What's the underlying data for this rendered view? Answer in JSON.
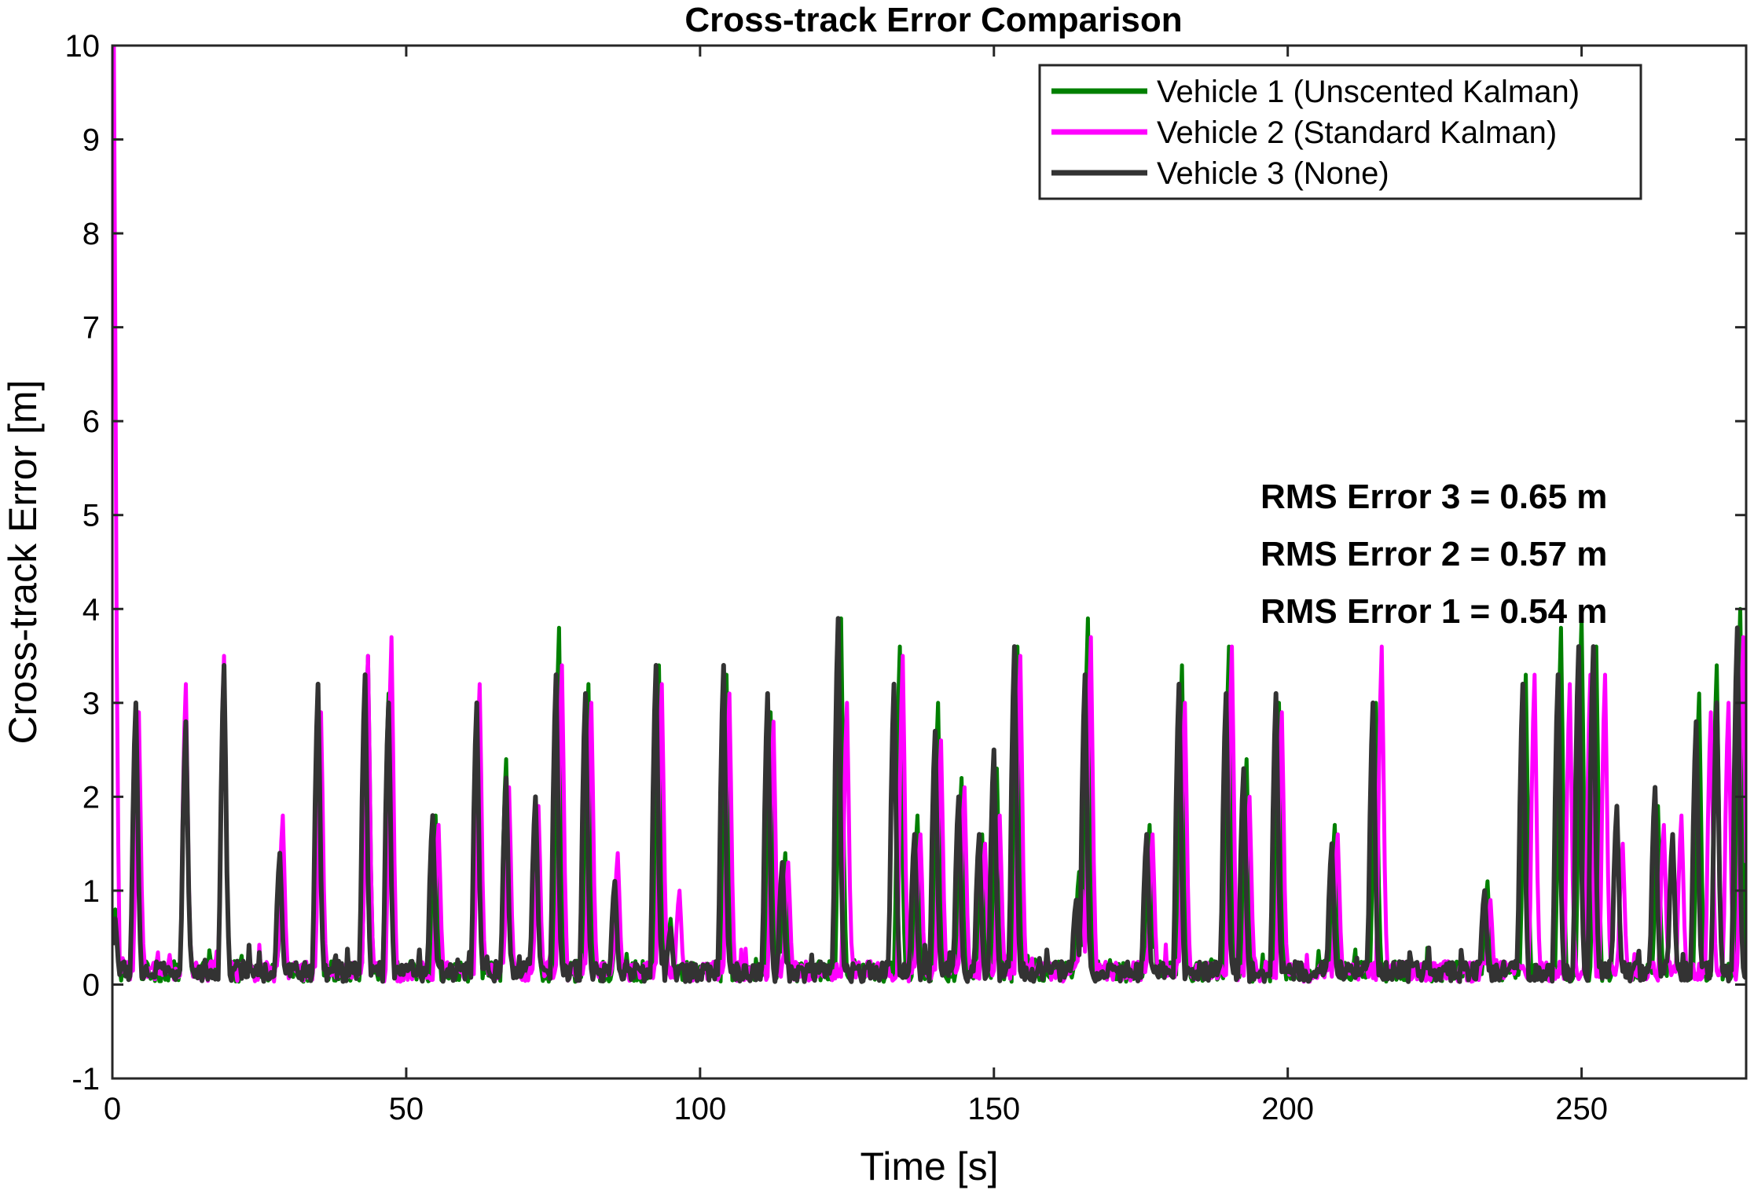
{
  "chart_data": {
    "type": "line",
    "title": "Cross-track Error Comparison",
    "xlabel": "Time [s]",
    "ylabel": "Cross-track Error [m]",
    "xlim": [
      0,
      278
    ],
    "ylim": [
      -1,
      10
    ],
    "xticks": [
      0,
      50,
      100,
      150,
      200,
      250
    ],
    "yticks": [
      -1,
      0,
      1,
      2,
      3,
      4,
      5,
      6,
      7,
      8,
      9,
      10
    ],
    "grid": false,
    "legend_position": "top-right",
    "series": [
      {
        "name": "Vehicle 1 (Unscented Kalman)",
        "color": "#008000",
        "peaks": [
          [
            0.4,
            0.8
          ],
          [
            4,
            3.0
          ],
          [
            12.5,
            2.8
          ],
          [
            19,
            3.4
          ],
          [
            29,
            1.5
          ],
          [
            35,
            3.2
          ],
          [
            43.5,
            3.5
          ],
          [
            47,
            3.1
          ],
          [
            55,
            1.8
          ],
          [
            62,
            3.0
          ],
          [
            67,
            2.4
          ],
          [
            72,
            2.0
          ],
          [
            76,
            3.8
          ],
          [
            81,
            3.2
          ],
          [
            86,
            1.1
          ],
          [
            93,
            3.4
          ],
          [
            95,
            0.7
          ],
          [
            104.5,
            3.3
          ],
          [
            112,
            2.9
          ],
          [
            114.5,
            1.4
          ],
          [
            124,
            3.9
          ],
          [
            134,
            3.6
          ],
          [
            137,
            1.8
          ],
          [
            140.5,
            3.0
          ],
          [
            144.5,
            2.2
          ],
          [
            148,
            1.6
          ],
          [
            150.5,
            2.3
          ],
          [
            154,
            3.6
          ],
          [
            164.5,
            1.2
          ],
          [
            166,
            3.9
          ],
          [
            176.5,
            1.7
          ],
          [
            182,
            3.4
          ],
          [
            190,
            3.6
          ],
          [
            193,
            2.4
          ],
          [
            198.5,
            3.0
          ],
          [
            208,
            1.7
          ],
          [
            215,
            3.0
          ],
          [
            234,
            1.1
          ],
          [
            240.5,
            3.3
          ],
          [
            246.5,
            3.8
          ],
          [
            250,
            3.9
          ],
          [
            252.5,
            3.6
          ],
          [
            256,
            1.8
          ],
          [
            263,
            1.9
          ],
          [
            265.5,
            1.5
          ],
          [
            270,
            3.1
          ],
          [
            273,
            3.4
          ],
          [
            277,
            4.0
          ]
        ]
      },
      {
        "name": "Vehicle 2 (Standard Kalman)",
        "color": "#ff00ff",
        "peaks": [
          [
            0.3,
            10.0
          ],
          [
            4.5,
            2.9
          ],
          [
            12.5,
            3.2
          ],
          [
            19,
            3.5
          ],
          [
            29,
            1.8
          ],
          [
            35.5,
            2.9
          ],
          [
            43.5,
            3.5
          ],
          [
            47.5,
            3.7
          ],
          [
            55.5,
            1.7
          ],
          [
            62.5,
            3.2
          ],
          [
            67.5,
            2.1
          ],
          [
            72.5,
            1.9
          ],
          [
            76.5,
            3.4
          ],
          [
            81.5,
            3.0
          ],
          [
            86,
            1.4
          ],
          [
            93.5,
            3.2
          ],
          [
            96.5,
            1.0
          ],
          [
            105,
            3.1
          ],
          [
            112.5,
            2.8
          ],
          [
            115,
            1.3
          ],
          [
            125,
            3.0
          ],
          [
            134.5,
            3.5
          ],
          [
            137.5,
            1.6
          ],
          [
            141,
            2.6
          ],
          [
            145,
            2.1
          ],
          [
            148.5,
            1.5
          ],
          [
            151,
            1.8
          ],
          [
            154.5,
            3.5
          ],
          [
            165,
            1.0
          ],
          [
            166.5,
            3.7
          ],
          [
            177,
            1.6
          ],
          [
            182.5,
            3.0
          ],
          [
            190.5,
            3.6
          ],
          [
            193.5,
            2.0
          ],
          [
            199,
            2.9
          ],
          [
            208.5,
            1.6
          ],
          [
            216,
            3.6
          ],
          [
            234.5,
            0.9
          ],
          [
            242,
            3.3
          ],
          [
            248,
            3.2
          ],
          [
            251.5,
            3.3
          ],
          [
            254,
            3.3
          ],
          [
            257,
            1.5
          ],
          [
            264,
            1.7
          ],
          [
            267,
            1.8
          ],
          [
            272,
            2.9
          ],
          [
            275,
            3.0
          ],
          [
            277.5,
            3.7
          ]
        ]
      },
      {
        "name": "Vehicle 3 (None)",
        "color": "#333333",
        "peaks": [
          [
            0.5,
            0.7
          ],
          [
            4,
            3.0
          ],
          [
            12.5,
            2.8
          ],
          [
            19,
            3.4
          ],
          [
            28.5,
            1.4
          ],
          [
            35,
            3.2
          ],
          [
            43,
            3.3
          ],
          [
            47,
            3.0
          ],
          [
            54.5,
            1.8
          ],
          [
            62,
            3.0
          ],
          [
            67,
            2.2
          ],
          [
            72,
            2.0
          ],
          [
            75.5,
            3.3
          ],
          [
            80.5,
            3.1
          ],
          [
            85.5,
            1.1
          ],
          [
            92.5,
            3.4
          ],
          [
            95,
            0.6
          ],
          [
            104,
            3.4
          ],
          [
            111.5,
            3.1
          ],
          [
            114,
            1.3
          ],
          [
            123.5,
            3.9
          ],
          [
            133,
            3.2
          ],
          [
            136.5,
            1.6
          ],
          [
            140,
            2.7
          ],
          [
            144,
            2.0
          ],
          [
            147.5,
            1.6
          ],
          [
            150,
            2.5
          ],
          [
            153.5,
            3.6
          ],
          [
            164,
            0.9
          ],
          [
            165.5,
            3.3
          ],
          [
            176,
            1.6
          ],
          [
            181.5,
            3.2
          ],
          [
            189.5,
            3.1
          ],
          [
            192.5,
            2.3
          ],
          [
            198,
            3.1
          ],
          [
            207.5,
            1.5
          ],
          [
            214.5,
            3.0
          ],
          [
            233.5,
            1.0
          ],
          [
            240,
            3.2
          ],
          [
            246,
            3.3
          ],
          [
            249.5,
            3.6
          ],
          [
            252,
            3.6
          ],
          [
            256,
            1.9
          ],
          [
            262.5,
            2.1
          ],
          [
            265.5,
            1.6
          ],
          [
            269.5,
            2.8
          ],
          [
            273,
            3.0
          ],
          [
            276.5,
            3.8
          ]
        ]
      }
    ],
    "annotations": [
      "RMS Error 3 = 0.65 m",
      "RMS Error 2 = 0.57 m",
      "RMS Error 1 = 0.54 m"
    ]
  }
}
